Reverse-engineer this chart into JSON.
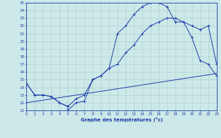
{
  "xlabel": "Graphe des températures (°c)",
  "xlim": [
    0,
    23
  ],
  "ylim": [
    11,
    25
  ],
  "yticks": [
    11,
    12,
    13,
    14,
    15,
    16,
    17,
    18,
    19,
    20,
    21,
    22,
    23,
    24,
    25
  ],
  "xticks": [
    0,
    1,
    2,
    3,
    4,
    5,
    6,
    7,
    8,
    9,
    10,
    11,
    12,
    13,
    14,
    15,
    16,
    17,
    18,
    19,
    20,
    21,
    22,
    23
  ],
  "bg_color": "#cce8e8",
  "line_color": "#1a3aaa",
  "grid_color": "#aacccc",
  "curve1_x": [
    0,
    1,
    2,
    3,
    4,
    5,
    5,
    6,
    7,
    8,
    9,
    10,
    11,
    12,
    13,
    14,
    15,
    16,
    17,
    18,
    19,
    20,
    21,
    22,
    23
  ],
  "curve1_y": [
    14.5,
    13,
    13,
    12.8,
    12,
    11.5,
    11,
    12,
    12.2,
    15,
    15.5,
    16.5,
    21,
    22,
    23.5,
    24.5,
    25,
    25,
    24.5,
    22.5,
    22.5,
    20.5,
    17.5,
    17,
    15.5
  ],
  "curve2_x": [
    0,
    1,
    2,
    3,
    4,
    5,
    6,
    7,
    8,
    9,
    10,
    11,
    12,
    13,
    14,
    15,
    16,
    17,
    18,
    19,
    20,
    21,
    22,
    23
  ],
  "curve2_y": [
    14.5,
    13,
    13,
    12.8,
    12,
    11.5,
    12.5,
    13,
    15,
    15.5,
    16.5,
    17,
    18.5,
    19.5,
    21,
    22,
    22.5,
    23,
    23,
    22.5,
    22,
    21.5,
    22,
    17
  ],
  "curve3_x": [
    0,
    23
  ],
  "curve3_y": [
    12.0,
    15.8
  ]
}
